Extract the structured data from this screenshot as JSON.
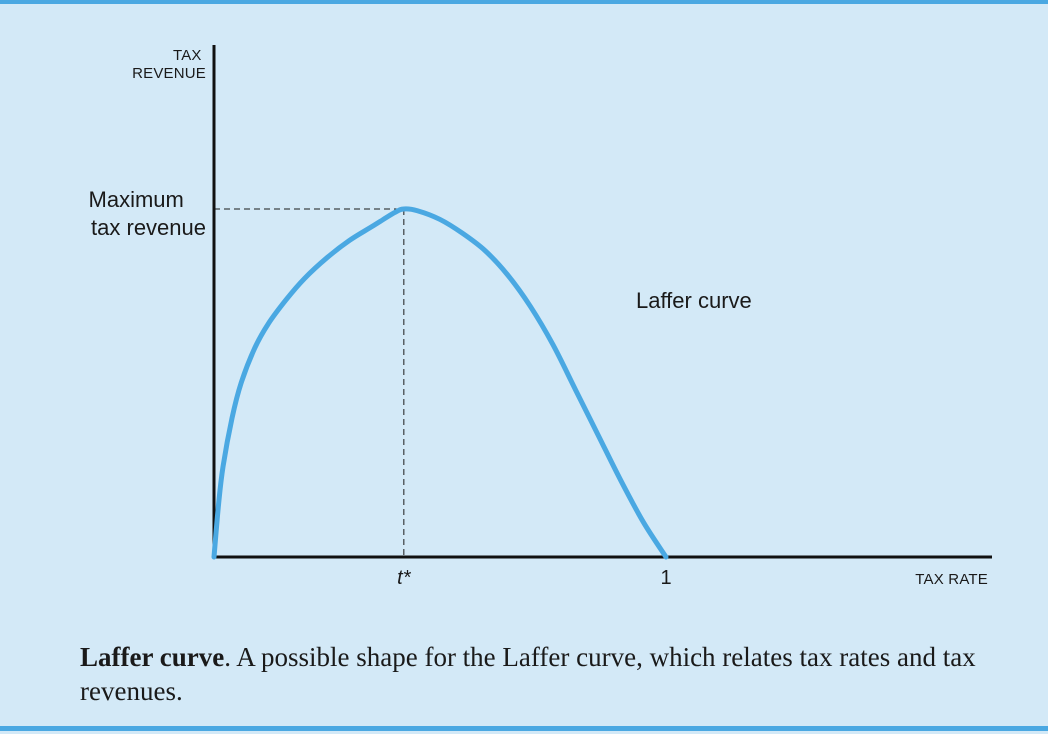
{
  "chart_data": {
    "type": "line",
    "ylabel_lines": [
      "TAX",
      "REVENUE"
    ],
    "xlabel": "TAX RATE",
    "x_ticks": [
      {
        "label": "t*",
        "italic": true,
        "x": 0.42
      },
      {
        "label": "1",
        "italic": false,
        "x": 1.0
      }
    ],
    "series": [
      {
        "name": "Laffer curve",
        "color": "#4aa8e2",
        "x": [
          0,
          0.01,
          0.02,
          0.04,
          0.06,
          0.09,
          0.12,
          0.16,
          0.2,
          0.25,
          0.3,
          0.35,
          0.4,
          0.42,
          0.45,
          0.5,
          0.55,
          0.6,
          0.65,
          0.7,
          0.75,
          0.8,
          0.85,
          0.9,
          0.95,
          1.0
        ],
        "y": [
          0,
          0.15,
          0.26,
          0.4,
          0.5,
          0.6,
          0.67,
          0.74,
          0.8,
          0.86,
          0.91,
          0.95,
          0.99,
          1.0,
          0.995,
          0.97,
          0.93,
          0.88,
          0.81,
          0.72,
          0.61,
          0.48,
          0.35,
          0.22,
          0.1,
          0
        ]
      }
    ],
    "annotations": {
      "max_label_lines": [
        "Maximum",
        "tax revenue"
      ],
      "curve_label": "Laffer curve"
    },
    "xlim": [
      0,
      1.72
    ],
    "ylim": [
      0,
      1.0
    ],
    "grid": false
  },
  "caption": {
    "bold": "Laffer curve",
    "text": ". A possible shape for the Laffer curve, which relates tax rates and tax revenues."
  }
}
